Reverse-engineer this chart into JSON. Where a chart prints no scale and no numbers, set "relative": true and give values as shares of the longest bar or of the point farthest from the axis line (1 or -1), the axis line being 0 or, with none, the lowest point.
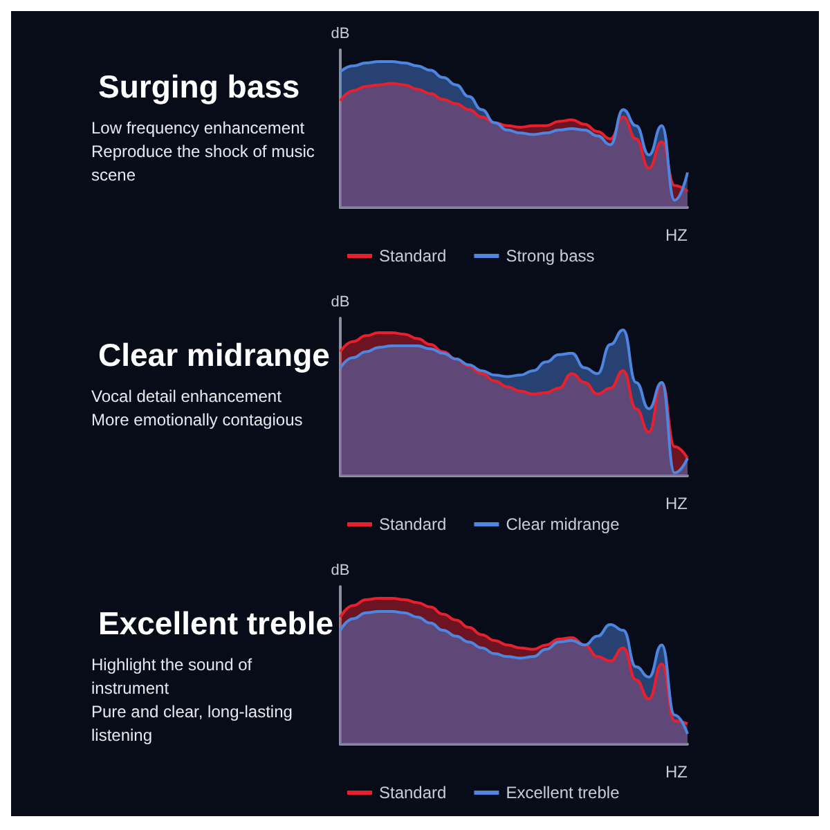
{
  "chart_data": [
    {
      "type": "area",
      "title": "Surging bass",
      "annotations": [
        "Low frequency enhancement",
        "Reproduce the shock of music scene"
      ],
      "xlabel": "HZ",
      "ylabel": "dB",
      "relative": true,
      "legend": "bottom",
      "grid": false,
      "categories": [
        null,
        null,
        null,
        null,
        null,
        null,
        null,
        null,
        null,
        null,
        null,
        null,
        null,
        null,
        null,
        null,
        null,
        null,
        null,
        null,
        null,
        null,
        null,
        null,
        null,
        null,
        null,
        null
      ],
      "series": [
        {
          "name": "Standard",
          "color": "#e8202e",
          "values": [
            0.73,
            0.8,
            0.83,
            0.84,
            0.85,
            0.84,
            0.81,
            0.78,
            0.74,
            0.71,
            0.67,
            0.62,
            0.58,
            0.56,
            0.55,
            0.56,
            0.56,
            0.59,
            0.6,
            0.57,
            0.52,
            0.47,
            0.62,
            0.47,
            0.27,
            0.45,
            0.15,
            0.11
          ]
        },
        {
          "name": "Strong bass",
          "color": "#4d86e0",
          "values": [
            0.93,
            0.97,
            0.99,
            1,
            1,
            0.99,
            0.97,
            0.94,
            0.89,
            0.84,
            0.76,
            0.67,
            0.58,
            0.53,
            0.51,
            0.5,
            0.51,
            0.53,
            0.54,
            0.53,
            0.49,
            0.43,
            0.67,
            0.56,
            0.36,
            0.56,
            0.05,
            0.24
          ]
        }
      ]
    },
    {
      "type": "area",
      "title": "Clear midrange",
      "annotations": [
        "Vocal detail enhancement",
        "More emotionally contagious"
      ],
      "xlabel": "HZ",
      "ylabel": "dB",
      "relative": true,
      "legend": "bottom",
      "grid": false,
      "categories": [
        null,
        null,
        null,
        null,
        null,
        null,
        null,
        null,
        null,
        null,
        null,
        null,
        null,
        null,
        null,
        null,
        null,
        null,
        null,
        null,
        null,
        null,
        null,
        null,
        null,
        null,
        null,
        null
      ],
      "series": [
        {
          "name": "Standard",
          "color": "#e8202e",
          "values": [
            0.85,
            0.92,
            0.96,
            0.98,
            0.98,
            0.97,
            0.94,
            0.9,
            0.85,
            0.8,
            0.75,
            0.7,
            0.65,
            0.61,
            0.58,
            0.56,
            0.57,
            0.6,
            0.7,
            0.64,
            0.56,
            0.6,
            0.72,
            0.46,
            0.3,
            0.64,
            0.2,
            0.12
          ]
        },
        {
          "name": "Clear midrange",
          "color": "#4d86e0",
          "values": [
            0.74,
            0.81,
            0.85,
            0.88,
            0.89,
            0.89,
            0.89,
            0.87,
            0.84,
            0.8,
            0.76,
            0.72,
            0.69,
            0.68,
            0.69,
            0.72,
            0.78,
            0.83,
            0.84,
            0.74,
            0.7,
            0.9,
            1,
            0.64,
            0.46,
            0.64,
            0.02,
            0.12
          ]
        }
      ]
    },
    {
      "type": "area",
      "title": "Excellent treble",
      "annotations": [
        "Highlight the sound of instrument",
        "Pure and clear, long-lasting listening"
      ],
      "xlabel": "HZ",
      "ylabel": "dB",
      "relative": true,
      "legend": "bottom",
      "grid": false,
      "categories": [
        null,
        null,
        null,
        null,
        null,
        null,
        null,
        null,
        null,
        null,
        null,
        null,
        null,
        null,
        null,
        null,
        null,
        null,
        null,
        null,
        null,
        null,
        null,
        null,
        null,
        null,
        null,
        null
      ],
      "series": [
        {
          "name": "Standard",
          "color": "#e8202e",
          "values": [
            0.87,
            0.95,
            0.99,
            1,
            1,
            0.99,
            0.97,
            0.94,
            0.89,
            0.85,
            0.8,
            0.75,
            0.71,
            0.68,
            0.66,
            0.65,
            0.68,
            0.72,
            0.73,
            0.68,
            0.6,
            0.57,
            0.66,
            0.44,
            0.31,
            0.55,
            0.16,
            0.14
          ]
        },
        {
          "name": "Excellent treble",
          "color": "#4d86e0",
          "values": [
            0.78,
            0.86,
            0.9,
            0.91,
            0.91,
            0.9,
            0.87,
            0.83,
            0.78,
            0.74,
            0.7,
            0.66,
            0.62,
            0.6,
            0.59,
            0.6,
            0.65,
            0.7,
            0.71,
            0.68,
            0.74,
            0.82,
            0.78,
            0.53,
            0.46,
            0.68,
            0.2,
            0.07
          ]
        }
      ]
    }
  ]
}
